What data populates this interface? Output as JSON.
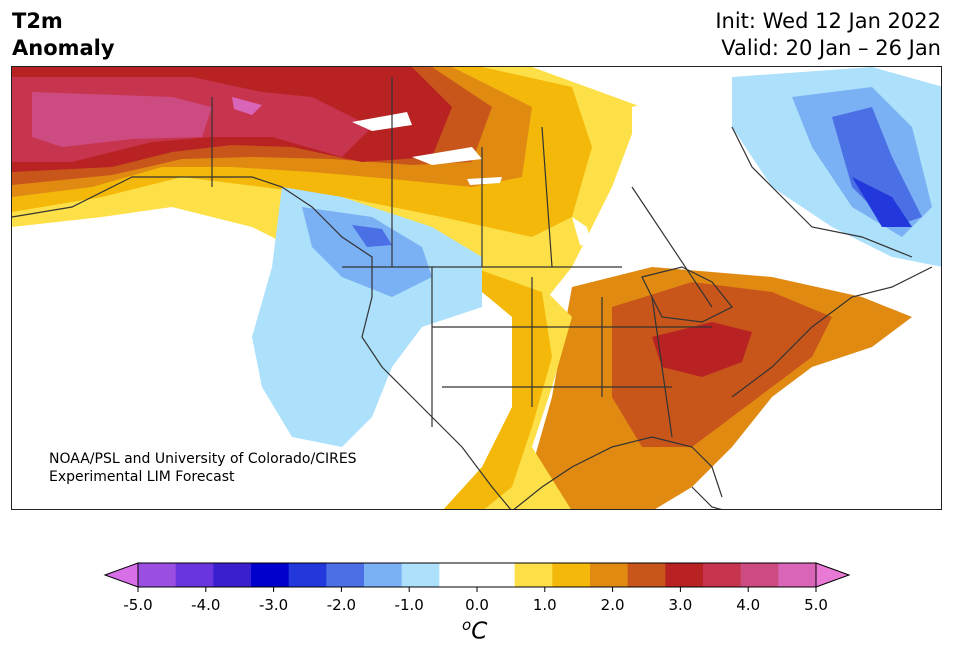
{
  "header": {
    "title_line1": "T2m",
    "title_line2": "Anomaly",
    "init": "Init: Wed 12 Jan 2022",
    "valid": "Valid: 20 Jan – 26 Jan"
  },
  "credit": {
    "line1": "NOAA/PSL and University of Colorado/CIRES",
    "line2": "Experimental LIM Forecast"
  },
  "colorbar": {
    "colors": [
      "#d770e8",
      "#9b4fe0",
      "#6a35dd",
      "#3a1fcf",
      "#0000cc",
      "#2238dc",
      "#4b6fe4",
      "#7ab0f4",
      "#ace0fb",
      "#ffffff",
      "#ffffff",
      "#fde047",
      "#f3b80a",
      "#e08a12",
      "#c8561a",
      "#b82222",
      "#c7344e",
      "#cc4c82",
      "#d965b8",
      "#e87ad6"
    ],
    "ticks": [
      "-5.0",
      "-4.0",
      "-3.0",
      "-2.0",
      "-1.0",
      "0.0",
      "1.0",
      "2.0",
      "3.0",
      "4.0",
      "5.0"
    ],
    "unit_base": "C",
    "unit_sup": "o"
  }
}
